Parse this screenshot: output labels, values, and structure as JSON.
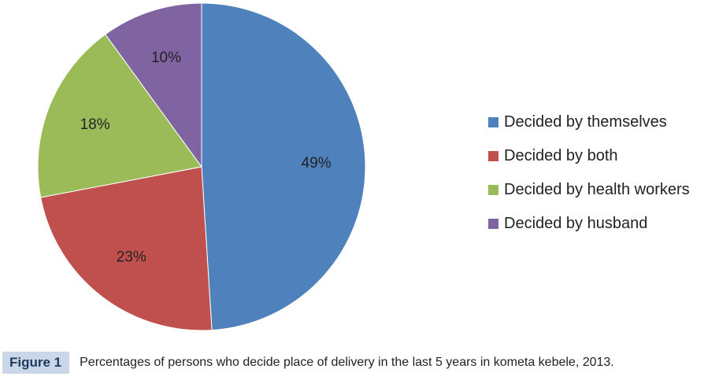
{
  "chart_data": {
    "type": "pie",
    "categories": [
      "Decided by themselves",
      "Decided by both",
      "Decided by health workers",
      "Decided by husband"
    ],
    "values": [
      49,
      23,
      18,
      10
    ],
    "data_labels": [
      "49%",
      "23%",
      "18%",
      "10%"
    ],
    "colors": [
      "#4f81bd",
      "#c0504d",
      "#9bbb59",
      "#8064a2"
    ],
    "legend_placement": "right"
  },
  "caption": {
    "tag": "Figure 1",
    "text": "Percentages of persons who decide place of delivery in the last 5 years in kometa kebele, 2013."
  }
}
